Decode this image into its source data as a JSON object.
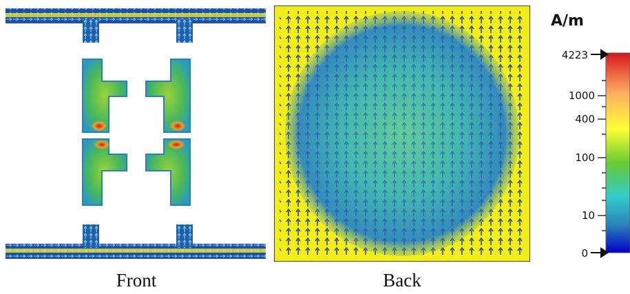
{
  "captions": {
    "front": "Front",
    "back": "Back"
  },
  "colorbar": {
    "unit": "A/m",
    "ticks": [
      "4223",
      "1000",
      "400",
      "100",
      "10",
      "0"
    ],
    "colors": [
      "#d7191c",
      "#fdae61",
      "#ffff33",
      "#66cc33",
      "#33cccc",
      "#2b83ba",
      "#0000cc"
    ]
  },
  "colors": {
    "background_field": "#f2ee1c",
    "arrow_dark": "#1f3f9e",
    "arrow_mid": "#2f8fc8",
    "field_center": "#33b6a0",
    "hotspot": "#cc2020"
  }
}
